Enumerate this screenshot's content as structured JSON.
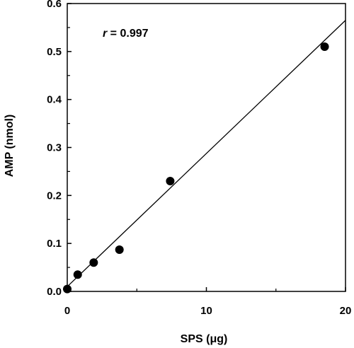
{
  "chart_data": {
    "type": "scatter",
    "title": "",
    "xlabel": "SPS (μg)",
    "ylabel": "AMP (nmol)",
    "xlim": [
      0,
      20
    ],
    "ylim": [
      0,
      0.6
    ],
    "x_ticks": [
      0,
      10,
      20
    ],
    "x_tick_labels": [
      "0",
      "10",
      "20"
    ],
    "y_ticks": [
      0,
      0.1,
      0.2,
      0.3,
      0.4,
      0.5,
      0.6
    ],
    "y_tick_labels": [
      "0.0",
      "0.1",
      "0.2",
      "0.3",
      "0.4",
      "0.5",
      "0.6"
    ],
    "grid": false,
    "legend": "none",
    "series": [
      {
        "x": [
          0,
          0.75,
          1.9,
          3.75,
          7.4,
          18.5
        ],
        "y": [
          0.005,
          0.035,
          0.06,
          0.087,
          0.23,
          0.51
        ]
      }
    ],
    "fit_line": {
      "x": [
        0,
        20
      ],
      "y": [
        0.01,
        0.565
      ]
    },
    "annotation": {
      "label": "r",
      "text": " = 0.997"
    },
    "marker_color": "#000000",
    "line_color": "#000000"
  }
}
